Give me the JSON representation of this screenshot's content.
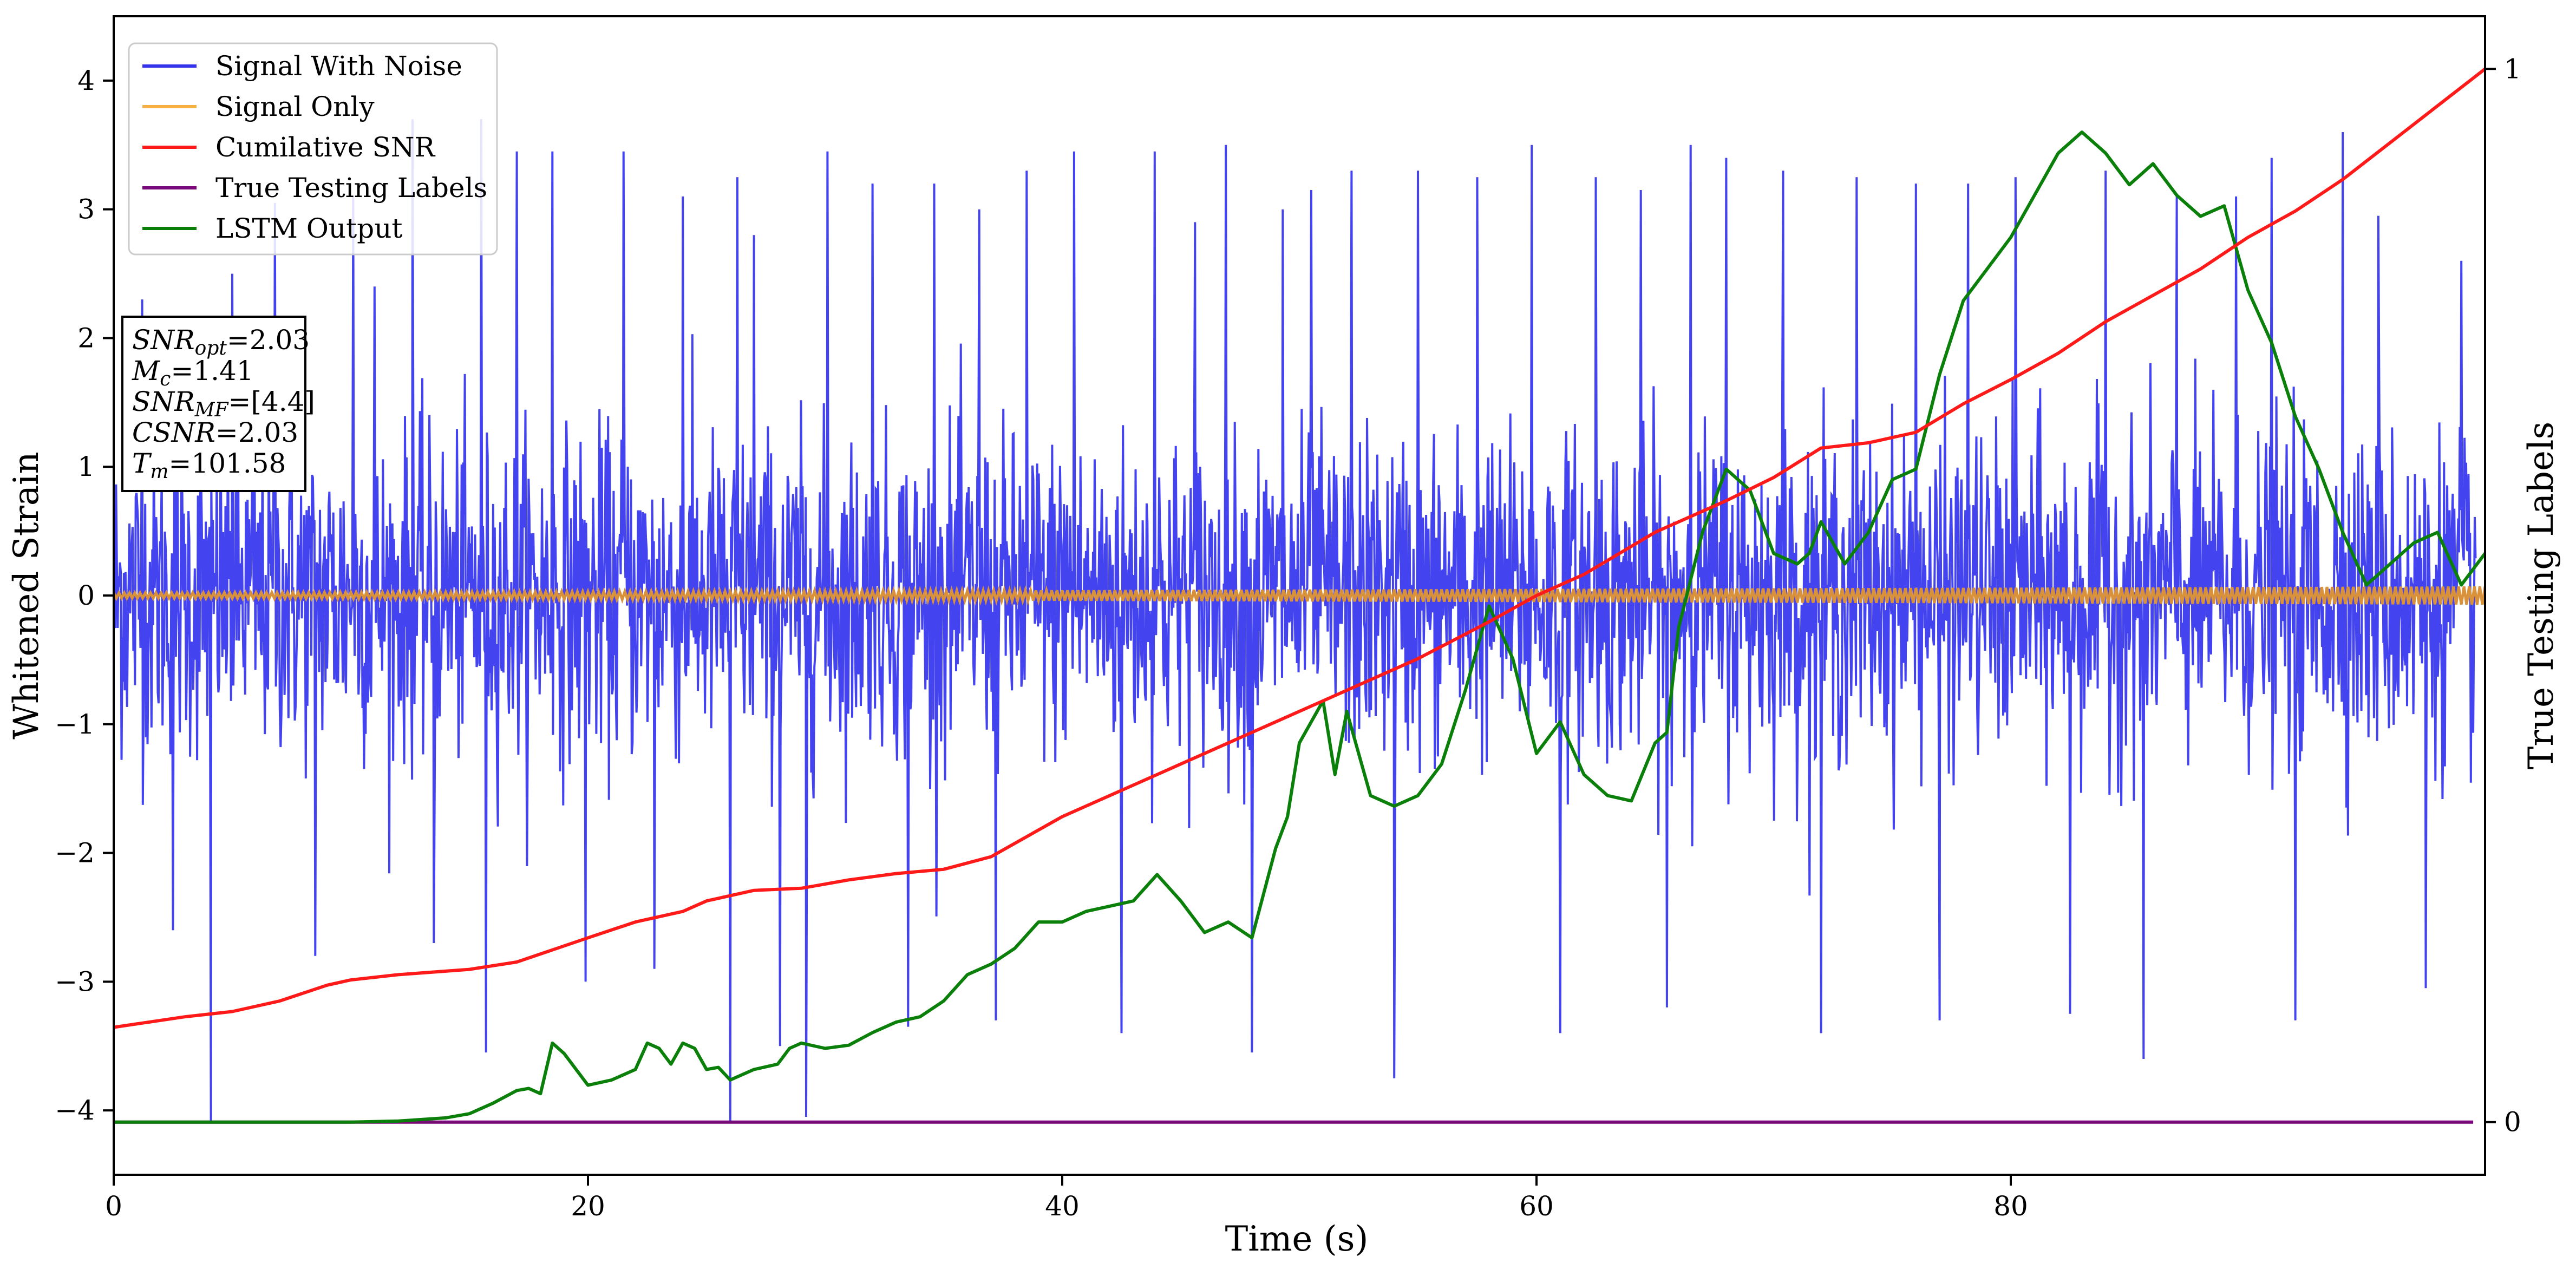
{
  "chart_data": {
    "type": "line",
    "xlabel": "Time (s)",
    "ylabel": "Whitened Strain",
    "y2label": "True Testing Labels",
    "xlim": [
      0,
      100
    ],
    "ylim": [
      -4.5,
      4.5
    ],
    "y2lim": [
      -0.05,
      1.05
    ],
    "xticks": [
      0,
      20,
      40,
      60,
      80
    ],
    "yticks": [
      -4,
      -3,
      -2,
      -1,
      0,
      1,
      2,
      3,
      4
    ],
    "y2ticks": [
      0,
      1
    ],
    "grid": false,
    "legend_position": "top-left",
    "colors": {
      "signal_with_noise": "#3333ee",
      "signal_only": "#f5b041",
      "signal_only_overlay": "#d9913a",
      "cumulative_snr": "#ff1a1a",
      "true_labels": "#7b0a7b",
      "lstm_output": "#0a800a"
    },
    "annotation": {
      "lines": [
        {
          "base": "SNR",
          "sub": "opt",
          "value": "=2.03"
        },
        {
          "base": "M",
          "sub": "c",
          "value": "=1.41"
        },
        {
          "base": "SNR",
          "sub": "MF",
          "value": "=[4.4]"
        },
        {
          "base": "CSNR",
          "sub": "",
          "value": "=2.03"
        },
        {
          "base": "T",
          "sub": "m",
          "value": "=101.58"
        }
      ]
    },
    "series": [
      {
        "name": "Signal With Noise",
        "axis": "left",
        "style": "noise",
        "description_values": {
          "typical_range": [
            -2.0,
            2.0
          ],
          "max_peak": 3.9,
          "min_peak": -4.1
        },
        "peaks": [
          [
            1.2,
            2.3
          ],
          [
            2.5,
            -2.6
          ],
          [
            4.1,
            -4.08
          ],
          [
            5.0,
            2.5
          ],
          [
            6.8,
            3.05
          ],
          [
            8.5,
            -2.8
          ],
          [
            10.1,
            3.1
          ],
          [
            11.0,
            2.4
          ],
          [
            12.6,
            3.7
          ],
          [
            13.5,
            -2.7
          ],
          [
            15.5,
            3.7
          ],
          [
            15.7,
            -3.55
          ],
          [
            17.0,
            3.45
          ],
          [
            18.5,
            3.45
          ],
          [
            19.9,
            -3.0
          ],
          [
            21.5,
            3.45
          ],
          [
            22.8,
            -2.9
          ],
          [
            24.0,
            3.1
          ],
          [
            26.0,
            -4.1
          ],
          [
            26.3,
            3.25
          ],
          [
            27.0,
            2.8
          ],
          [
            28.1,
            -3.5
          ],
          [
            29.2,
            -4.05
          ],
          [
            30.1,
            3.45
          ],
          [
            32.0,
            3.2
          ],
          [
            33.5,
            -3.35
          ],
          [
            34.6,
            3.2
          ],
          [
            36.5,
            3.0
          ],
          [
            37.2,
            -3.3
          ],
          [
            38.5,
            3.3
          ],
          [
            40.5,
            3.45
          ],
          [
            42.5,
            -3.4
          ],
          [
            43.9,
            3.45
          ],
          [
            45.6,
            2.9
          ],
          [
            46.9,
            3.5
          ],
          [
            48.0,
            -3.55
          ],
          [
            49.3,
            3.0
          ],
          [
            50.5,
            3.15
          ],
          [
            52.2,
            3.3
          ],
          [
            54.0,
            -3.75
          ],
          [
            55.0,
            3.3
          ],
          [
            57.5,
            3.25
          ],
          [
            59.8,
            3.5
          ],
          [
            61.0,
            -3.4
          ],
          [
            62.5,
            3.25
          ],
          [
            64.4,
            3.15
          ],
          [
            65.5,
            -3.2
          ],
          [
            66.5,
            3.5
          ],
          [
            68.0,
            3.4
          ],
          [
            70.4,
            3.3
          ],
          [
            72.0,
            -3.4
          ],
          [
            73.5,
            3.25
          ],
          [
            76.0,
            3.2
          ],
          [
            77.0,
            -3.3
          ],
          [
            78.2,
            3.2
          ],
          [
            80.2,
            3.25
          ],
          [
            82.5,
            -3.25
          ],
          [
            84.0,
            3.3
          ],
          [
            85.6,
            -3.6
          ],
          [
            87.0,
            3.1
          ],
          [
            89.5,
            3.1
          ],
          [
            91.0,
            3.4
          ],
          [
            92.0,
            -3.3
          ],
          [
            94.0,
            3.6
          ],
          [
            95.5,
            2.95
          ],
          [
            97.5,
            -3.05
          ],
          [
            99.0,
            2.6
          ]
        ]
      },
      {
        "name": "Signal Only",
        "axis": "left",
        "style": "band",
        "values_note": "oscillation",
        "amplitude_start": 0.02,
        "amplitude_end": 0.07
      },
      {
        "name": "Cumilative SNR",
        "axis": "right",
        "x": [
          0,
          3,
          5,
          7,
          9,
          10,
          12,
          15,
          17,
          20,
          22,
          24,
          25,
          27,
          29,
          31,
          33,
          35,
          37,
          40,
          42,
          45,
          48,
          50,
          52,
          55,
          58,
          60,
          62,
          65,
          68,
          70,
          72,
          74,
          76,
          78,
          80,
          82,
          84,
          86,
          88,
          90,
          92,
          94,
          96,
          98,
          100
        ],
        "y": [
          0.09,
          0.1,
          0.105,
          0.115,
          0.13,
          0.135,
          0.14,
          0.145,
          0.152,
          0.175,
          0.19,
          0.2,
          0.21,
          0.22,
          0.222,
          0.23,
          0.236,
          0.24,
          0.252,
          0.29,
          0.31,
          0.34,
          0.37,
          0.39,
          0.41,
          0.44,
          0.475,
          0.5,
          0.52,
          0.56,
          0.59,
          0.612,
          0.64,
          0.645,
          0.655,
          0.682,
          0.705,
          0.73,
          0.76,
          0.785,
          0.81,
          0.84,
          0.865,
          0.895,
          0.93,
          0.965,
          1.0
        ]
      },
      {
        "name": "True Testing Labels",
        "axis": "right",
        "x": [
          0,
          99.5
        ],
        "y": [
          0,
          0
        ]
      },
      {
        "name": "LSTM Output",
        "axis": "right",
        "x": [
          0,
          10,
          12,
          14,
          15,
          16,
          17,
          17.5,
          18,
          18.5,
          19,
          20,
          21,
          22,
          22.5,
          23,
          23.5,
          24,
          24.5,
          25,
          25.5,
          26,
          27,
          28,
          28.5,
          29,
          30,
          31,
          32,
          33,
          34,
          35,
          36,
          37,
          38,
          39,
          40,
          41,
          42,
          43,
          44,
          45,
          46,
          47,
          48,
          49,
          49.5,
          50,
          51,
          51.5,
          52,
          53,
          54,
          55,
          56,
          57,
          58,
          59,
          60,
          61,
          62,
          63,
          64,
          65,
          65.5,
          66,
          67,
          68,
          69,
          70,
          71,
          71.5,
          72,
          73,
          74,
          75,
          76,
          77,
          78,
          79,
          80,
          81,
          82,
          83,
          84,
          85,
          86,
          87,
          88,
          89,
          90,
          91,
          92,
          93,
          94,
          95,
          96,
          97,
          98,
          99,
          100
        ],
        "y": [
          0,
          0,
          0.001,
          0.004,
          0.008,
          0.018,
          0.03,
          0.032,
          0.027,
          0.075,
          0.065,
          0.035,
          0.04,
          0.05,
          0.075,
          0.07,
          0.055,
          0.075,
          0.07,
          0.05,
          0.052,
          0.04,
          0.05,
          0.055,
          0.07,
          0.075,
          0.07,
          0.073,
          0.085,
          0.095,
          0.1,
          0.115,
          0.14,
          0.15,
          0.165,
          0.19,
          0.19,
          0.2,
          0.205,
          0.21,
          0.235,
          0.21,
          0.18,
          0.19,
          0.175,
          0.26,
          0.29,
          0.36,
          0.4,
          0.33,
          0.39,
          0.31,
          0.3,
          0.31,
          0.34,
          0.41,
          0.49,
          0.44,
          0.35,
          0.38,
          0.33,
          0.31,
          0.305,
          0.36,
          0.37,
          0.47,
          0.56,
          0.62,
          0.6,
          0.54,
          0.53,
          0.54,
          0.57,
          0.53,
          0.56,
          0.61,
          0.62,
          0.71,
          0.78,
          0.81,
          0.84,
          0.88,
          0.92,
          0.94,
          0.92,
          0.89,
          0.91,
          0.88,
          0.86,
          0.87,
          0.79,
          0.74,
          0.67,
          0.62,
          0.56,
          0.51,
          0.53,
          0.55,
          0.56,
          0.51,
          0.54
        ]
      }
    ]
  }
}
